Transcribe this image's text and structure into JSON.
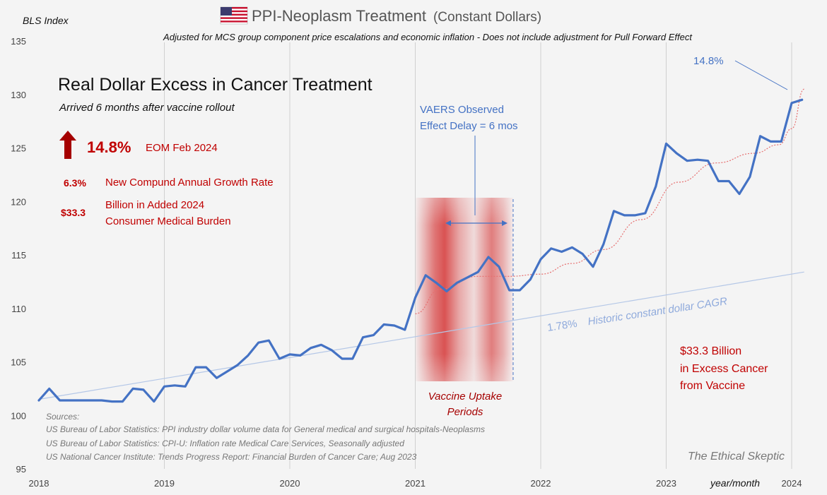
{
  "chart_data": {
    "type": "line",
    "title": "PPI-Neoplasm Treatment",
    "title_suffix": "(Constant Dollars)",
    "subtitle": "Adjusted for MCS group component price escalations and economic inflation - Does not include adjustment for Pull Forward Effect",
    "ylabel": "BLS Index",
    "xlabel": "year/month",
    "ylim": [
      95,
      135
    ],
    "yticks": [
      "95",
      "100",
      "105",
      "110",
      "115",
      "120",
      "125",
      "130",
      "135"
    ],
    "xticks": [
      "2018",
      "2019",
      "2020",
      "2021",
      "2022",
      "2023",
      "2024"
    ],
    "grid": "vertical year lines",
    "series": [
      {
        "kind": "actual",
        "color": "#4472c4",
        "x": [
          2018.0,
          2018.083,
          2018.167,
          2018.25,
          2018.333,
          2018.417,
          2018.5,
          2018.583,
          2018.667,
          2018.75,
          2018.833,
          2018.917,
          2019.0,
          2019.083,
          2019.167,
          2019.25,
          2019.333,
          2019.417,
          2019.5,
          2019.583,
          2019.667,
          2019.75,
          2019.833,
          2019.917,
          2020.0,
          2020.083,
          2020.167,
          2020.25,
          2020.333,
          2020.417,
          2020.5,
          2020.583,
          2020.667,
          2020.75,
          2020.833,
          2020.917,
          2021.0,
          2021.083,
          2021.167,
          2021.25,
          2021.333,
          2021.417,
          2021.5,
          2021.583,
          2021.667,
          2021.75,
          2021.833,
          2021.917,
          2022.0,
          2022.083,
          2022.167,
          2022.25,
          2022.333,
          2022.417,
          2022.5,
          2022.583,
          2022.667,
          2022.75,
          2022.833,
          2022.917,
          2023.0,
          2023.083,
          2023.167,
          2023.25,
          2023.333,
          2023.417,
          2023.5,
          2023.583,
          2023.667,
          2023.75,
          2023.833,
          2023.917,
          2024.0,
          2024.083
        ],
        "values": [
          101.4,
          102.5,
          101.4,
          101.4,
          101.4,
          101.4,
          101.4,
          101.3,
          101.3,
          102.5,
          102.4,
          101.3,
          102.7,
          102.8,
          102.7,
          104.5,
          104.5,
          103.5,
          104.1,
          104.7,
          105.6,
          106.8,
          107.0,
          105.3,
          105.7,
          105.6,
          106.3,
          106.6,
          106.1,
          105.3,
          105.3,
          107.3,
          107.5,
          108.5,
          108.4,
          108.0,
          111.0,
          113.1,
          112.4,
          111.6,
          112.4,
          112.9,
          113.4,
          114.8,
          113.9,
          111.7,
          111.7,
          112.7,
          114.6,
          115.6,
          115.3,
          115.7,
          115.1,
          113.9,
          116.0,
          119.1,
          118.7,
          118.7,
          118.9,
          121.4,
          125.4,
          124.5,
          123.8,
          123.9,
          123.8,
          121.9,
          121.9,
          120.7,
          122.3,
          126.1,
          125.6,
          125.6,
          129.2,
          129.5
        ]
      },
      {
        "kind": "historic constant dollar CAGR trend",
        "color": "#b4c7e7",
        "x": [
          2018.0,
          2024.1
        ],
        "values": [
          101.5,
          113.4
        ]
      },
      {
        "kind": "excess trend (smoothed)",
        "color": "#e67070",
        "x": [
          2021.0,
          2021.2,
          2021.5,
          2021.75,
          2022.0,
          2022.25,
          2022.5,
          2022.8,
          2023.1,
          2023.4,
          2023.7,
          2023.9,
          2024.0,
          2024.1
        ],
        "values": [
          109.5,
          111.8,
          113.0,
          113.0,
          113.2,
          114.2,
          115.5,
          118.3,
          121.8,
          123.6,
          124.5,
          125.3,
          126.8,
          130.5
        ]
      }
    ],
    "vaccine_uptake_period": [
      2021.0,
      2021.78
    ],
    "annotations": {
      "headline": "Real Dollar Excess in Cancer Treatment",
      "headline_sub": "Arrived 6 months after vaccine rollout",
      "big_pct": "14.8%",
      "big_pct_label": "EOM Feb 2024",
      "cagr_value": "6.3%",
      "cagr_label": "New Compund Annual Growth Rate",
      "billion_value": "$33.3",
      "billion_label_1": "Billion in Added 2024",
      "billion_label_2": "Consumer Medical Burden",
      "vaers_1": "VAERS Observed",
      "vaers_2": "Effect Delay = 6 mos",
      "uptake_1": "Vaccine Uptake",
      "uptake_2": "Periods",
      "trend_pct": "1.78%",
      "trend_label": "Historic constant dollar CAGR",
      "top_right_pct": "14.8%",
      "excess_1": "$33.3 Billion",
      "excess_2": "in Excess Cancer",
      "excess_3": "from Vaccine"
    },
    "sources_title": "Sources:",
    "sources": [
      "US Bureau of Labor Statistics: PPI industry dollar volume data for General medical and surgical hospitals-Neoplasms",
      "US Bureau of Labor Statistics: CPI-U: Inflation rate Medical Care Services, Seasonally adjusted",
      "US National Cancer Institute: Trends Progress Report: Financial Burden of Cancer Care; Aug 2023"
    ],
    "watermark": "The Ethical Skeptic"
  },
  "colors": {
    "series": "#4472c4",
    "trend": "#b4c7e7",
    "excess": "#e67070",
    "red_text": "#c00000",
    "dark_red": "#a50000"
  }
}
